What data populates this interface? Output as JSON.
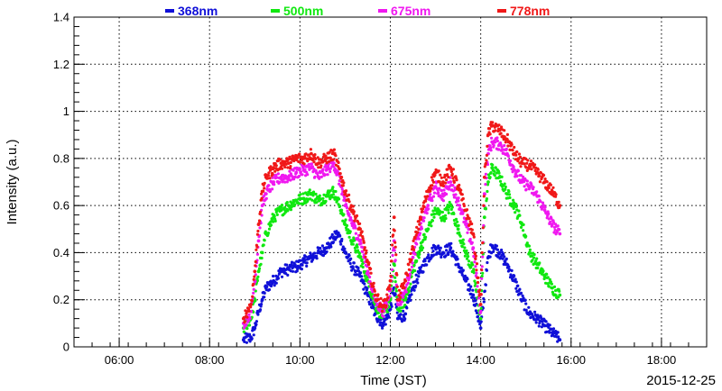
{
  "chart_data": {
    "type": "scatter",
    "xlabel": "Time (JST)",
    "ylabel": "Intensity (a.u.)",
    "date_label": "2015-12-25",
    "xlim": [
      "05:00",
      "19:00"
    ],
    "ylim": [
      0,
      1.4
    ],
    "x_ticks": [
      "06:00",
      "08:00",
      "10:00",
      "12:00",
      "14:00",
      "16:00",
      "18:00"
    ],
    "y_ticks": [
      "0",
      "0.2",
      "0.4",
      "0.6",
      "0.8",
      "1",
      "1.2",
      "1.4"
    ],
    "grid": true,
    "legend_position": "top",
    "series": [
      {
        "name": "368nm",
        "color": "#1010d8",
        "points": [
          [
            "08:45",
            0.03
          ],
          [
            "08:55",
            0.04
          ],
          [
            "09:00",
            0.08
          ],
          [
            "09:05",
            0.15
          ],
          [
            "09:10",
            0.2
          ],
          [
            "09:15",
            0.25
          ],
          [
            "09:25",
            0.28
          ],
          [
            "09:35",
            0.32
          ],
          [
            "09:45",
            0.33
          ],
          [
            "09:55",
            0.34
          ],
          [
            "10:05",
            0.36
          ],
          [
            "10:15",
            0.38
          ],
          [
            "10:25",
            0.4
          ],
          [
            "10:35",
            0.42
          ],
          [
            "10:45",
            0.46
          ],
          [
            "10:50",
            0.48
          ],
          [
            "10:55",
            0.45
          ],
          [
            "11:00",
            0.4
          ],
          [
            "11:10",
            0.34
          ],
          [
            "11:20",
            0.3
          ],
          [
            "11:30",
            0.22
          ],
          [
            "11:40",
            0.14
          ],
          [
            "11:50",
            0.1
          ],
          [
            "11:55",
            0.12
          ],
          [
            "12:00",
            0.16
          ],
          [
            "12:05",
            0.25
          ],
          [
            "12:10",
            0.12
          ],
          [
            "12:20",
            0.14
          ],
          [
            "12:30",
            0.25
          ],
          [
            "12:40",
            0.32
          ],
          [
            "12:50",
            0.38
          ],
          [
            "13:00",
            0.42
          ],
          [
            "13:10",
            0.4
          ],
          [
            "13:20",
            0.42
          ],
          [
            "13:30",
            0.35
          ],
          [
            "13:40",
            0.28
          ],
          [
            "13:50",
            0.22
          ],
          [
            "14:00",
            0.08
          ],
          [
            "14:10",
            0.38
          ],
          [
            "14:15",
            0.43
          ],
          [
            "14:25",
            0.4
          ],
          [
            "14:35",
            0.35
          ],
          [
            "14:45",
            0.28
          ],
          [
            "14:55",
            0.2
          ],
          [
            "15:05",
            0.14
          ],
          [
            "15:15",
            0.12
          ],
          [
            "15:25",
            0.09
          ],
          [
            "15:35",
            0.06
          ],
          [
            "15:45",
            0.03
          ]
        ]
      },
      {
        "name": "500nm",
        "color": "#10e810",
        "points": [
          [
            "08:45",
            0.08
          ],
          [
            "08:55",
            0.12
          ],
          [
            "09:00",
            0.2
          ],
          [
            "09:05",
            0.32
          ],
          [
            "09:10",
            0.4
          ],
          [
            "09:15",
            0.48
          ],
          [
            "09:25",
            0.55
          ],
          [
            "09:35",
            0.58
          ],
          [
            "09:45",
            0.6
          ],
          [
            "09:55",
            0.62
          ],
          [
            "10:05",
            0.63
          ],
          [
            "10:15",
            0.65
          ],
          [
            "10:25",
            0.62
          ],
          [
            "10:35",
            0.64
          ],
          [
            "10:45",
            0.66
          ],
          [
            "10:55",
            0.58
          ],
          [
            "11:00",
            0.52
          ],
          [
            "11:10",
            0.45
          ],
          [
            "11:20",
            0.38
          ],
          [
            "11:30",
            0.28
          ],
          [
            "11:40",
            0.18
          ],
          [
            "11:50",
            0.13
          ],
          [
            "11:55",
            0.16
          ],
          [
            "12:00",
            0.2
          ],
          [
            "12:05",
            0.35
          ],
          [
            "12:10",
            0.16
          ],
          [
            "12:20",
            0.2
          ],
          [
            "12:30",
            0.32
          ],
          [
            "12:40",
            0.42
          ],
          [
            "12:50",
            0.5
          ],
          [
            "13:00",
            0.58
          ],
          [
            "13:10",
            0.55
          ],
          [
            "13:20",
            0.6
          ],
          [
            "13:30",
            0.5
          ],
          [
            "13:40",
            0.4
          ],
          [
            "13:50",
            0.32
          ],
          [
            "14:00",
            0.12
          ],
          [
            "14:05",
            0.55
          ],
          [
            "14:10",
            0.7
          ],
          [
            "14:15",
            0.76
          ],
          [
            "14:25",
            0.72
          ],
          [
            "14:35",
            0.65
          ],
          [
            "14:45",
            0.6
          ],
          [
            "14:55",
            0.52
          ],
          [
            "15:05",
            0.4
          ],
          [
            "15:15",
            0.35
          ],
          [
            "15:25",
            0.3
          ],
          [
            "15:35",
            0.25
          ],
          [
            "15:45",
            0.22
          ]
        ]
      },
      {
        "name": "675nm",
        "color": "#f018f0",
        "points": [
          [
            "08:45",
            0.1
          ],
          [
            "08:55",
            0.15
          ],
          [
            "09:00",
            0.28
          ],
          [
            "09:05",
            0.45
          ],
          [
            "09:10",
            0.6
          ],
          [
            "09:15",
            0.65
          ],
          [
            "09:25",
            0.7
          ],
          [
            "09:35",
            0.72
          ],
          [
            "09:45",
            0.72
          ],
          [
            "09:55",
            0.74
          ],
          [
            "10:05",
            0.75
          ],
          [
            "10:15",
            0.76
          ],
          [
            "10:25",
            0.72
          ],
          [
            "10:35",
            0.75
          ],
          [
            "10:45",
            0.78
          ],
          [
            "10:55",
            0.68
          ],
          [
            "11:00",
            0.6
          ],
          [
            "11:10",
            0.52
          ],
          [
            "11:20",
            0.45
          ],
          [
            "11:30",
            0.32
          ],
          [
            "11:40",
            0.2
          ],
          [
            "11:50",
            0.15
          ],
          [
            "11:55",
            0.18
          ],
          [
            "12:00",
            0.24
          ],
          [
            "12:05",
            0.45
          ],
          [
            "12:10",
            0.18
          ],
          [
            "12:20",
            0.24
          ],
          [
            "12:30",
            0.38
          ],
          [
            "12:40",
            0.5
          ],
          [
            "12:50",
            0.6
          ],
          [
            "13:00",
            0.68
          ],
          [
            "13:10",
            0.64
          ],
          [
            "13:20",
            0.7
          ],
          [
            "13:30",
            0.62
          ],
          [
            "13:40",
            0.52
          ],
          [
            "13:50",
            0.42
          ],
          [
            "14:00",
            0.15
          ],
          [
            "14:05",
            0.65
          ],
          [
            "14:10",
            0.82
          ],
          [
            "14:15",
            0.87
          ],
          [
            "14:25",
            0.86
          ],
          [
            "14:35",
            0.82
          ],
          [
            "14:45",
            0.75
          ],
          [
            "14:55",
            0.7
          ],
          [
            "15:05",
            0.68
          ],
          [
            "15:15",
            0.64
          ],
          [
            "15:25",
            0.58
          ],
          [
            "15:35",
            0.52
          ],
          [
            "15:45",
            0.48
          ]
        ]
      },
      {
        "name": "778nm",
        "color": "#f01818",
        "points": [
          [
            "08:45",
            0.12
          ],
          [
            "08:55",
            0.18
          ],
          [
            "09:00",
            0.32
          ],
          [
            "09:05",
            0.52
          ],
          [
            "09:10",
            0.66
          ],
          [
            "09:15",
            0.72
          ],
          [
            "09:25",
            0.76
          ],
          [
            "09:35",
            0.78
          ],
          [
            "09:45",
            0.78
          ],
          [
            "09:55",
            0.8
          ],
          [
            "10:05",
            0.8
          ],
          [
            "10:15",
            0.82
          ],
          [
            "10:25",
            0.78
          ],
          [
            "10:35",
            0.8
          ],
          [
            "10:45",
            0.82
          ],
          [
            "10:55",
            0.72
          ],
          [
            "11:00",
            0.66
          ],
          [
            "11:10",
            0.58
          ],
          [
            "11:20",
            0.5
          ],
          [
            "11:30",
            0.36
          ],
          [
            "11:40",
            0.22
          ],
          [
            "11:50",
            0.17
          ],
          [
            "11:55",
            0.2
          ],
          [
            "12:00",
            0.28
          ],
          [
            "12:05",
            0.55
          ],
          [
            "12:10",
            0.2
          ],
          [
            "12:20",
            0.28
          ],
          [
            "12:30",
            0.42
          ],
          [
            "12:40",
            0.55
          ],
          [
            "12:50",
            0.66
          ],
          [
            "13:00",
            0.74
          ],
          [
            "13:10",
            0.7
          ],
          [
            "13:20",
            0.76
          ],
          [
            "13:30",
            0.68
          ],
          [
            "13:40",
            0.58
          ],
          [
            "13:50",
            0.48
          ],
          [
            "14:00",
            0.18
          ],
          [
            "14:05",
            0.72
          ],
          [
            "14:10",
            0.9
          ],
          [
            "14:15",
            0.94
          ],
          [
            "14:25",
            0.92
          ],
          [
            "14:35",
            0.88
          ],
          [
            "14:45",
            0.82
          ],
          [
            "14:55",
            0.78
          ],
          [
            "15:05",
            0.77
          ],
          [
            "15:15",
            0.74
          ],
          [
            "15:25",
            0.7
          ],
          [
            "15:35",
            0.66
          ],
          [
            "15:45",
            0.6
          ]
        ]
      }
    ]
  }
}
